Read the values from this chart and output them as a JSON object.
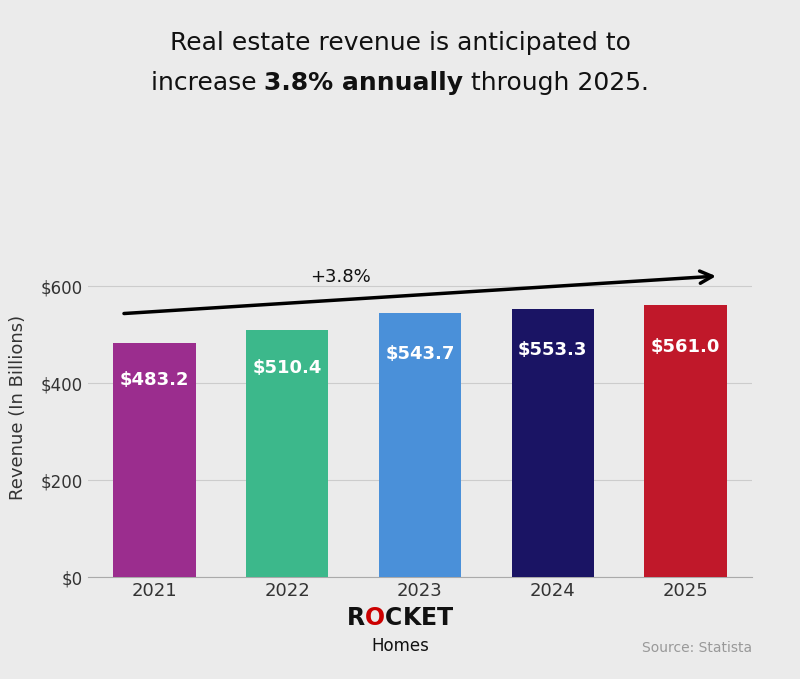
{
  "categories": [
    "2021",
    "2022",
    "2023",
    "2024",
    "2025"
  ],
  "values": [
    483.2,
    510.4,
    543.7,
    553.3,
    561.0
  ],
  "bar_colors": [
    "#9B2D8E",
    "#3CB88B",
    "#4A90D9",
    "#1A1464",
    "#C0182A"
  ],
  "bar_labels": [
    "$483.2",
    "$510.4",
    "$543.7",
    "$553.3",
    "$561.0"
  ],
  "title_line1": "Real estate revenue is anticipated to",
  "title_line2_normal1": "increase ",
  "title_line2_bold": "3.8% annually",
  "title_line2_normal2": " through 2025.",
  "ylabel": "Revenue (In Billions)",
  "yticks": [
    0,
    200,
    400,
    600
  ],
  "ytick_labels": [
    "$0",
    "$200",
    "$400",
    "$600"
  ],
  "ylim": [
    0,
    700
  ],
  "arrow_label": "+3.8%",
  "background_color": "#EBEBEB",
  "label_color": "#FFFFFF",
  "label_fontsize": 13,
  "title_fontsize": 18,
  "ylabel_fontsize": 13,
  "source_text": "Source: Statista",
  "homes_text": "Homes",
  "rocket_chars": [
    "R",
    "O",
    "C",
    "K",
    "E",
    "T"
  ],
  "rocket_colors": [
    "#111111",
    "#CC0000",
    "#111111",
    "#111111",
    "#111111",
    "#111111"
  ]
}
